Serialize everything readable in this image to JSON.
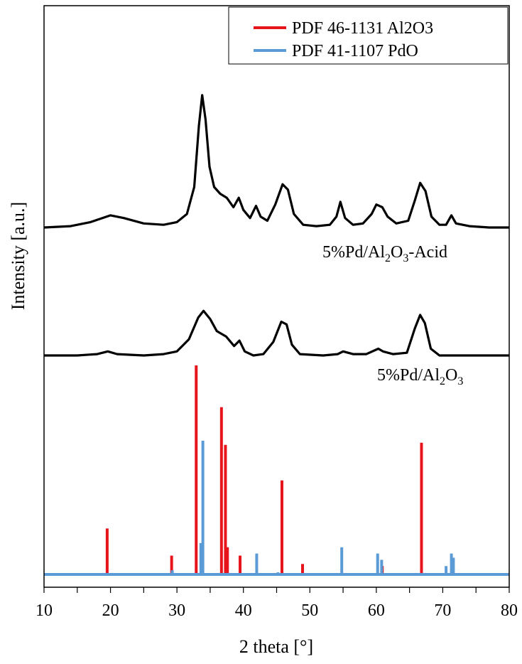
{
  "chart_data": {
    "type": "line",
    "xlabel": "2 theta [°]",
    "ylabel": "Intensity [a.u.]",
    "xlim": [
      10,
      80
    ],
    "x_ticks": [
      "10",
      "20",
      "30",
      "40",
      "50",
      "60",
      "70",
      "80"
    ],
    "grid": false,
    "legend_position": "top-right",
    "legend": [
      {
        "label": "PDF 46-1131 Al2O3",
        "color": "#e8141c"
      },
      {
        "label": "PDF 41-1107 PdO",
        "color": "#5b9bd5"
      }
    ],
    "samples": [
      {
        "label": "5%Pd/Al2O3-Acid",
        "color": "#000000",
        "baseline": 1.0,
        "points": [
          [
            10,
            0
          ],
          [
            14,
            0.01
          ],
          [
            17,
            0.04
          ],
          [
            20,
            0.09
          ],
          [
            22,
            0.07
          ],
          [
            25,
            0.03
          ],
          [
            28,
            0.02
          ],
          [
            30,
            0.04
          ],
          [
            31.5,
            0.1
          ],
          [
            32.6,
            0.3
          ],
          [
            33.3,
            0.75
          ],
          [
            33.8,
            0.98
          ],
          [
            34.3,
            0.8
          ],
          [
            34.9,
            0.45
          ],
          [
            35.6,
            0.3
          ],
          [
            36.5,
            0.25
          ],
          [
            37.5,
            0.22
          ],
          [
            38.5,
            0.15
          ],
          [
            39.3,
            0.22
          ],
          [
            40.0,
            0.13
          ],
          [
            41.0,
            0.07
          ],
          [
            41.9,
            0.16
          ],
          [
            42.6,
            0.08
          ],
          [
            43.6,
            0.05
          ],
          [
            44.8,
            0.17
          ],
          [
            45.9,
            0.32
          ],
          [
            46.7,
            0.28
          ],
          [
            47.6,
            0.1
          ],
          [
            49,
            0.02
          ],
          [
            51,
            0.01
          ],
          [
            53,
            0.02
          ],
          [
            54.0,
            0.08
          ],
          [
            54.6,
            0.19
          ],
          [
            55.3,
            0.07
          ],
          [
            56.5,
            0.02
          ],
          [
            58,
            0.03
          ],
          [
            59.3,
            0.1
          ],
          [
            60.0,
            0.17
          ],
          [
            60.9,
            0.15
          ],
          [
            61.7,
            0.08
          ],
          [
            63,
            0.03
          ],
          [
            64.8,
            0.05
          ],
          [
            65.8,
            0.2
          ],
          [
            66.6,
            0.33
          ],
          [
            67.4,
            0.27
          ],
          [
            68.3,
            0.08
          ],
          [
            69.5,
            0.02
          ],
          [
            70.5,
            0.02
          ],
          [
            71.3,
            0.09
          ],
          [
            72.0,
            0.03
          ],
          [
            74,
            0.01
          ],
          [
            77,
            0.0
          ],
          [
            80,
            0.0
          ]
        ]
      },
      {
        "label": "5%Pd/Al2O3",
        "color": "#000000",
        "baseline": 0.43,
        "points": [
          [
            10,
            0
          ],
          [
            15,
            0.0
          ],
          [
            18,
            0.01
          ],
          [
            19.6,
            0.03
          ],
          [
            21,
            0.01
          ],
          [
            25,
            0.0
          ],
          [
            28,
            0.01
          ],
          [
            30,
            0.03
          ],
          [
            31.8,
            0.12
          ],
          [
            33.2,
            0.28
          ],
          [
            34.0,
            0.33
          ],
          [
            35.0,
            0.27
          ],
          [
            36.0,
            0.18
          ],
          [
            37.4,
            0.14
          ],
          [
            38.6,
            0.07
          ],
          [
            39.4,
            0.11
          ],
          [
            40.2,
            0.03
          ],
          [
            41.5,
            0.0
          ],
          [
            43,
            0.01
          ],
          [
            44.5,
            0.1
          ],
          [
            45.7,
            0.25
          ],
          [
            46.5,
            0.23
          ],
          [
            47.3,
            0.08
          ],
          [
            48.5,
            0.01
          ],
          [
            52,
            0.0
          ],
          [
            54.2,
            0.01
          ],
          [
            55.0,
            0.03
          ],
          [
            56.5,
            0.01
          ],
          [
            58.5,
            0.01
          ],
          [
            60.3,
            0.05
          ],
          [
            61.0,
            0.03
          ],
          [
            62.5,
            0.01
          ],
          [
            64.6,
            0.02
          ],
          [
            65.8,
            0.2
          ],
          [
            66.6,
            0.3
          ],
          [
            67.3,
            0.24
          ],
          [
            68.2,
            0.05
          ],
          [
            69.5,
            0.0
          ],
          [
            73,
            0.0
          ],
          [
            80,
            0.0
          ]
        ]
      }
    ],
    "reference_series": [
      {
        "name": "PDF 46-1131 Al2O3",
        "color": "#e8141c",
        "sticks": [
          [
            19.5,
            0.22
          ],
          [
            29.2,
            0.09
          ],
          [
            32.9,
            1.0
          ],
          [
            33.7,
            0.05
          ],
          [
            36.7,
            0.8
          ],
          [
            37.3,
            0.62
          ],
          [
            37.6,
            0.13
          ],
          [
            39.5,
            0.09
          ],
          [
            45.8,
            0.45
          ],
          [
            48.9,
            0.05
          ],
          [
            60.9,
            0.04
          ],
          [
            66.8,
            0.63
          ]
        ]
      },
      {
        "name": "PDF 41-1107 PdO",
        "color": "#5b9bd5",
        "sticks": [
          [
            29.3,
            0.02
          ],
          [
            33.6,
            0.15
          ],
          [
            33.9,
            0.64
          ],
          [
            42.0,
            0.1
          ],
          [
            45.2,
            0.01
          ],
          [
            54.8,
            0.13
          ],
          [
            60.2,
            0.1
          ],
          [
            60.8,
            0.07
          ],
          [
            70.5,
            0.04
          ],
          [
            71.3,
            0.1
          ],
          [
            71.6,
            0.08
          ]
        ]
      }
    ]
  }
}
